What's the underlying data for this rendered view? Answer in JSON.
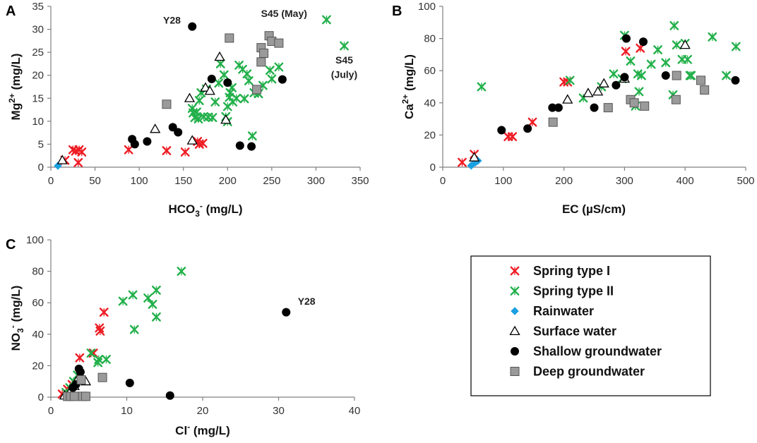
{
  "colors": {
    "spring1": "#ee1c24",
    "spring2": "#22b04a",
    "rain": "#1ba1e2",
    "surface": "#000000",
    "shallow": "#000000",
    "deep": "#9a9a9a"
  },
  "legend": {
    "items": [
      {
        "key": "spring1",
        "label": "Spring type I",
        "marker": "x-cross"
      },
      {
        "key": "spring2",
        "label": "Spring type II",
        "marker": "x-cross"
      },
      {
        "key": "rain",
        "label": "Rainwater",
        "marker": "diamond"
      },
      {
        "key": "surface",
        "label": "Surface water",
        "marker": "triangle"
      },
      {
        "key": "shallow",
        "label": "Shallow groundwater",
        "marker": "circle"
      },
      {
        "key": "deep",
        "label": "Deep groundwater",
        "marker": "square"
      }
    ]
  },
  "chart_data": [
    {
      "panel": "A",
      "type": "scatter",
      "xlabel": "HCO3- (mg/L)",
      "ylabel": "Mg2+ (mg/L)",
      "xlim": [
        0,
        350
      ],
      "ylim": [
        0,
        35
      ],
      "xticks": [
        0,
        50,
        100,
        150,
        200,
        250,
        300,
        350
      ],
      "yticks": [
        0,
        5,
        10,
        15,
        20,
        25,
        30,
        35
      ],
      "annotations": [
        {
          "text": "Y28",
          "x": 155,
          "y": 30.6,
          "anchor": "end",
          "dy": -4
        },
        {
          "text": "S45 (May)",
          "x": 298,
          "y": 32.1,
          "anchor": "end",
          "dy": -4
        },
        {
          "text": "S45",
          "x": 332,
          "y": 22.6,
          "anchor": "middle",
          "dy": 0
        },
        {
          "text": "(July)",
          "x": 332,
          "y": 19.4,
          "anchor": "middle",
          "dy": 0
        }
      ],
      "series": [
        {
          "key": "spring1",
          "name": "Spring type I",
          "points": [
            [
              16,
              1.5
            ],
            [
              25,
              3.8
            ],
            [
              28,
              3.5
            ],
            [
              31,
              1
            ],
            [
              32,
              3.8
            ],
            [
              35,
              3.3
            ],
            [
              88,
              3.8
            ],
            [
              131,
              3.6
            ],
            [
              152,
              3.3
            ],
            [
              166,
              5.6
            ],
            [
              168,
              5.0
            ],
            [
              172,
              5.2
            ]
          ]
        },
        {
          "key": "spring2",
          "name": "Spring type II",
          "points": [
            [
              160,
              12.8
            ],
            [
              161,
              11.8
            ],
            [
              163,
              10.8
            ],
            [
              165,
              12.0
            ],
            [
              167,
              10.5
            ],
            [
              168,
              14.5
            ],
            [
              170,
              16.2
            ],
            [
              173,
              11.0
            ],
            [
              176,
              17.0
            ],
            [
              178,
              10.9
            ],
            [
              183,
              10.8
            ],
            [
              186,
              14.2
            ],
            [
              190,
              18.3
            ],
            [
              192,
              22.5
            ],
            [
              196,
              20.1
            ],
            [
              198,
              11.0
            ],
            [
              200,
              9.9
            ],
            [
              200,
              13.2
            ],
            [
              202,
              15.2
            ],
            [
              203,
              16.2
            ],
            [
              205,
              17.3
            ],
            [
              206,
              14.2
            ],
            [
              210,
              15.0
            ],
            [
              213,
              22.2
            ],
            [
              217,
              21.3
            ],
            [
              219,
              14.9
            ],
            [
              222,
              20.3
            ],
            [
              224,
              18.8
            ],
            [
              228,
              6.8
            ],
            [
              230,
              16.2
            ],
            [
              235,
              16.0
            ],
            [
              240,
              17.8
            ],
            [
              248,
              21.1
            ],
            [
              250,
              19.2
            ],
            [
              258,
              21.8
            ],
            [
              312,
              32.1
            ],
            [
              332,
              26.4
            ]
          ]
        },
        {
          "key": "rain",
          "name": "Rainwater",
          "points": [
            [
              8,
              0.3
            ]
          ]
        },
        {
          "key": "surface",
          "name": "Surface water",
          "points": [
            [
              13,
              1.5
            ],
            [
              118,
              8.3
            ],
            [
              157,
              15.0
            ],
            [
              160,
              5.8
            ],
            [
              175,
              17.3
            ],
            [
              180,
              16.6
            ],
            [
              191,
              24.0
            ],
            [
              198,
              10.3
            ]
          ]
        },
        {
          "key": "shallow",
          "name": "Shallow groundwater",
          "points": [
            [
              92,
              6.1
            ],
            [
              95,
              5.0
            ],
            [
              109,
              5.6
            ],
            [
              138,
              8.7
            ],
            [
              144,
              7.6
            ],
            [
              160,
              30.6
            ],
            [
              182,
              19.2
            ],
            [
              200,
              18.4
            ],
            [
              214,
              4.7
            ],
            [
              227,
              4.5
            ],
            [
              262,
              19.1
            ]
          ]
        },
        {
          "key": "deep",
          "name": "Deep groundwater",
          "points": [
            [
              131,
              13.7
            ],
            [
              202,
              28.1
            ],
            [
              233,
              16.9
            ],
            [
              238,
              22.9
            ],
            [
              238,
              26.0
            ],
            [
              241,
              24.8
            ],
            [
              247,
              28.6
            ],
            [
              250,
              27.4
            ],
            [
              258,
              27.0
            ]
          ]
        }
      ]
    },
    {
      "panel": "B",
      "type": "scatter",
      "xlabel": "EC (µS/cm)",
      "ylabel": "Ca2+ (mg/L)",
      "xlim": [
        0,
        500
      ],
      "ylim": [
        0,
        100
      ],
      "xticks": [
        0,
        100,
        200,
        300,
        400,
        500
      ],
      "yticks": [
        0,
        20,
        40,
        60,
        80,
        100
      ],
      "annotations": [],
      "series": [
        {
          "key": "spring1",
          "name": "Spring type I",
          "points": [
            [
              32,
              3
            ],
            [
              52,
              8
            ],
            [
              108,
              19
            ],
            [
              115,
              19
            ],
            [
              148,
              28
            ],
            [
              200,
              53
            ],
            [
              206,
              53
            ],
            [
              302,
              72
            ],
            [
              326,
              74
            ]
          ]
        },
        {
          "key": "spring2",
          "name": "Spring type II",
          "points": [
            [
              64,
              50
            ],
            [
              210,
              54
            ],
            [
              232,
              43
            ],
            [
              262,
              50
            ],
            [
              282,
              58
            ],
            [
              296,
              55
            ],
            [
              300,
              82
            ],
            [
              310,
              66
            ],
            [
              318,
              38
            ],
            [
              322,
              58
            ],
            [
              324,
              47
            ],
            [
              328,
              57
            ],
            [
              344,
              64
            ],
            [
              355,
              73
            ],
            [
              368,
              65
            ],
            [
              380,
              45
            ],
            [
              382,
              88
            ],
            [
              386,
              76
            ],
            [
              395,
              67
            ],
            [
              400,
              77
            ],
            [
              404,
              67
            ],
            [
              408,
              57
            ],
            [
              410,
              57
            ],
            [
              445,
              81
            ],
            [
              468,
              57
            ],
            [
              484,
              75
            ]
          ]
        },
        {
          "key": "rain",
          "name": "Rainwater",
          "points": [
            [
              47,
              1
            ],
            [
              54,
              3
            ],
            [
              58,
              4
            ]
          ]
        },
        {
          "key": "surface",
          "name": "Surface water",
          "points": [
            [
              52,
              6
            ],
            [
              206,
              42
            ],
            [
              240,
              46
            ],
            [
              256,
              47
            ],
            [
              266,
              52
            ],
            [
              300,
              55
            ],
            [
              400,
              76
            ]
          ]
        },
        {
          "key": "shallow",
          "name": "Shallow groundwater",
          "points": [
            [
              97,
              23
            ],
            [
              140,
              24
            ],
            [
              181,
              37
            ],
            [
              191,
              37
            ],
            [
              250,
              37
            ],
            [
              286,
              51
            ],
            [
              300,
              56
            ],
            [
              303,
              80
            ],
            [
              331,
              78
            ],
            [
              368,
              57
            ],
            [
              483,
              54
            ]
          ]
        },
        {
          "key": "deep",
          "name": "Deep groundwater",
          "points": [
            [
              182,
              28
            ],
            [
              273,
              37
            ],
            [
              310,
              42
            ],
            [
              316,
              40
            ],
            [
              333,
              38
            ],
            [
              385,
              42
            ],
            [
              386,
              57
            ],
            [
              426,
              54
            ],
            [
              432,
              48
            ]
          ]
        }
      ]
    },
    {
      "panel": "C",
      "type": "scatter",
      "xlabel": "Cl- (mg/L)",
      "ylabel": "NO3- (mg/L)",
      "xlim": [
        0,
        40
      ],
      "ylim": [
        0,
        100
      ],
      "xticks": [
        0,
        10,
        20,
        30,
        40
      ],
      "yticks": [
        0,
        20,
        40,
        60,
        80,
        100
      ],
      "annotations": [
        {
          "text": "Y28",
          "x": 31.6,
          "y": 57,
          "anchor": "start",
          "dy": -4
        }
      ],
      "series": [
        {
          "key": "spring1",
          "name": "Spring type I",
          "points": [
            [
              1.5,
              2
            ],
            [
              2.2,
              5
            ],
            [
              2.8,
              8
            ],
            [
              3.8,
              25
            ],
            [
              5.6,
              28
            ],
            [
              6.4,
              44
            ],
            [
              6.5,
              42
            ],
            [
              7,
              54
            ]
          ]
        },
        {
          "key": "spring2",
          "name": "Spring type II",
          "points": [
            [
              2.0,
              3
            ],
            [
              2.5,
              6
            ],
            [
              3.0,
              10
            ],
            [
              3.5,
              14
            ],
            [
              5.3,
              28
            ],
            [
              6.2,
              22
            ],
            [
              6.3,
              24
            ],
            [
              7.3,
              24
            ],
            [
              9.5,
              61
            ],
            [
              10.8,
              65
            ],
            [
              11.0,
              43
            ],
            [
              12.8,
              63
            ],
            [
              13.4,
              59
            ],
            [
              13.9,
              68
            ],
            [
              13.9,
              51
            ],
            [
              17.2,
              80
            ]
          ]
        },
        {
          "key": "rain",
          "name": "Rainwater",
          "points": [
            [
              2.6,
              1
            ]
          ]
        },
        {
          "key": "surface",
          "name": "Surface water",
          "points": [
            [
              1.8,
              1
            ],
            [
              2.6,
              4
            ],
            [
              3.1,
              7
            ],
            [
              3.6,
              12
            ],
            [
              4.6,
              10
            ]
          ]
        },
        {
          "key": "shallow",
          "name": "Shallow groundwater",
          "points": [
            [
              2.9,
              6
            ],
            [
              3.3,
              8
            ],
            [
              3.7,
              18
            ],
            [
              3.9,
              16
            ],
            [
              10.4,
              9
            ],
            [
              15.7,
              1
            ],
            [
              31.0,
              54
            ]
          ]
        },
        {
          "key": "deep",
          "name": "Deep groundwater",
          "points": [
            [
              2.2,
              0.5
            ],
            [
              2.6,
              0.5
            ],
            [
              3.1,
              0.5
            ],
            [
              4.2,
              0.5
            ],
            [
              4.6,
              0.5
            ],
            [
              4.0,
              11
            ],
            [
              6.8,
              12.5
            ]
          ]
        }
      ]
    }
  ]
}
